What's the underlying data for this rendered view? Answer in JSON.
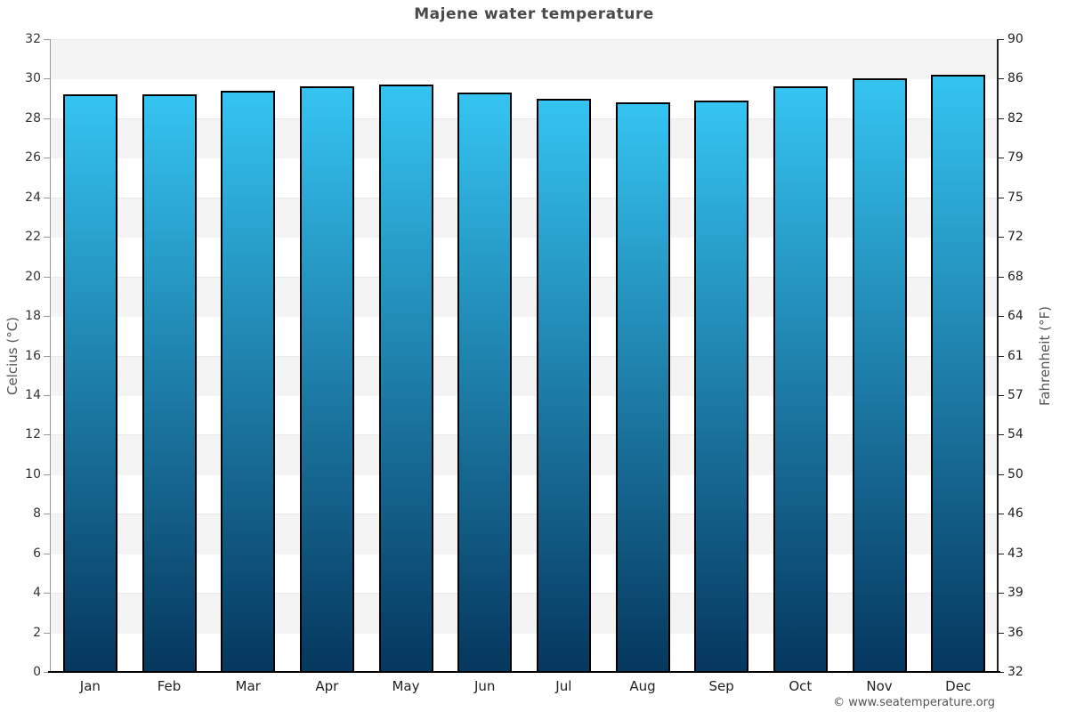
{
  "chart_data": {
    "type": "bar",
    "title": "Majene water temperature",
    "categories": [
      "Jan",
      "Feb",
      "Mar",
      "Apr",
      "May",
      "Jun",
      "Jul",
      "Aug",
      "Sep",
      "Oct",
      "Nov",
      "Dec"
    ],
    "values": [
      29.2,
      29.2,
      29.4,
      29.6,
      29.7,
      29.3,
      29.0,
      28.8,
      28.9,
      29.6,
      30.0,
      30.2
    ],
    "unit": "°C",
    "xlabel": "",
    "ylabel_left": "Celcius (°C)",
    "ylabel_right": "Fahrenheit (°F)",
    "ylim": [
      0,
      32
    ],
    "yticks_left": [
      32,
      30,
      28,
      26,
      24,
      22,
      20,
      18,
      16,
      14,
      12,
      10,
      8,
      6,
      4,
      2,
      0
    ],
    "yticks_right": [
      90,
      86,
      82,
      79,
      75,
      72,
      68,
      64,
      61,
      57,
      54,
      50,
      46,
      43,
      39,
      36,
      32
    ],
    "grid": "alternating horizontal bands every 2°C",
    "legend": "none",
    "colors": {
      "bar_gradient_top": "#35c4f2",
      "bar_gradient_bottom": "#05375e",
      "bar_border": "#000000",
      "band_gray": "#f4f4f4",
      "band_white": "#ffffff",
      "axis_left_line": "#999999",
      "axis_right_line": "#222222",
      "axis_bottom_line": "#000000",
      "tick_text": "#333333",
      "title_text": "#4a4a4a"
    }
  },
  "footer": {
    "attribution": "© www.seatemperature.org"
  }
}
